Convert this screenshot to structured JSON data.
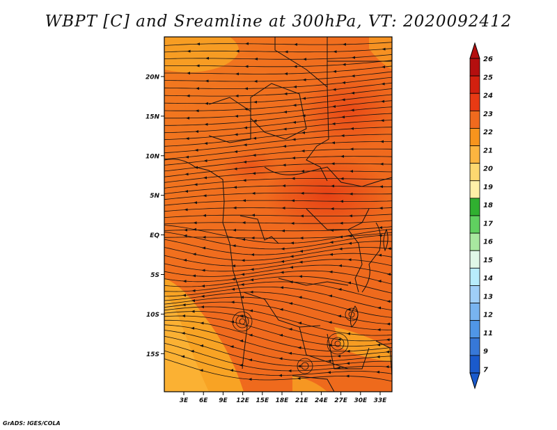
{
  "title": "WBPT [C] and Sreamline at 300hPa, VT: 2020092412",
  "credit": "GrADS: IGES/COLA",
  "map": {
    "field": "Wet-bulb potential temperature (WBPT) with 300 hPa streamlines",
    "lat_labels": [
      "20N",
      "15N",
      "10N",
      "5N",
      "EQ",
      "5S",
      "10S",
      "15S"
    ],
    "lon_labels": [
      "3E",
      "6E",
      "9E",
      "12E",
      "15E",
      "18E",
      "21E",
      "24E",
      "27E",
      "30E",
      "33E"
    ],
    "dominant_color": "#f06a1e"
  },
  "colorbar": {
    "labels": [
      "26",
      "25",
      "24",
      "23",
      "22",
      "21",
      "20",
      "19",
      "18",
      "17",
      "16",
      "15",
      "14",
      "13",
      "12",
      "11",
      "9",
      "7"
    ],
    "colors": [
      "#b40f0f",
      "#d2200f",
      "#e83a14",
      "#f06a1e",
      "#f7941d",
      "#fcb540",
      "#fdd870",
      "#fff0a8",
      "#30b030",
      "#60d060",
      "#a8e8a0",
      "#e0f8e8",
      "#b8ecfc",
      "#a0cff8",
      "#78b4f0",
      "#5096e6",
      "#3778d8",
      "#1a5acc"
    ]
  }
}
